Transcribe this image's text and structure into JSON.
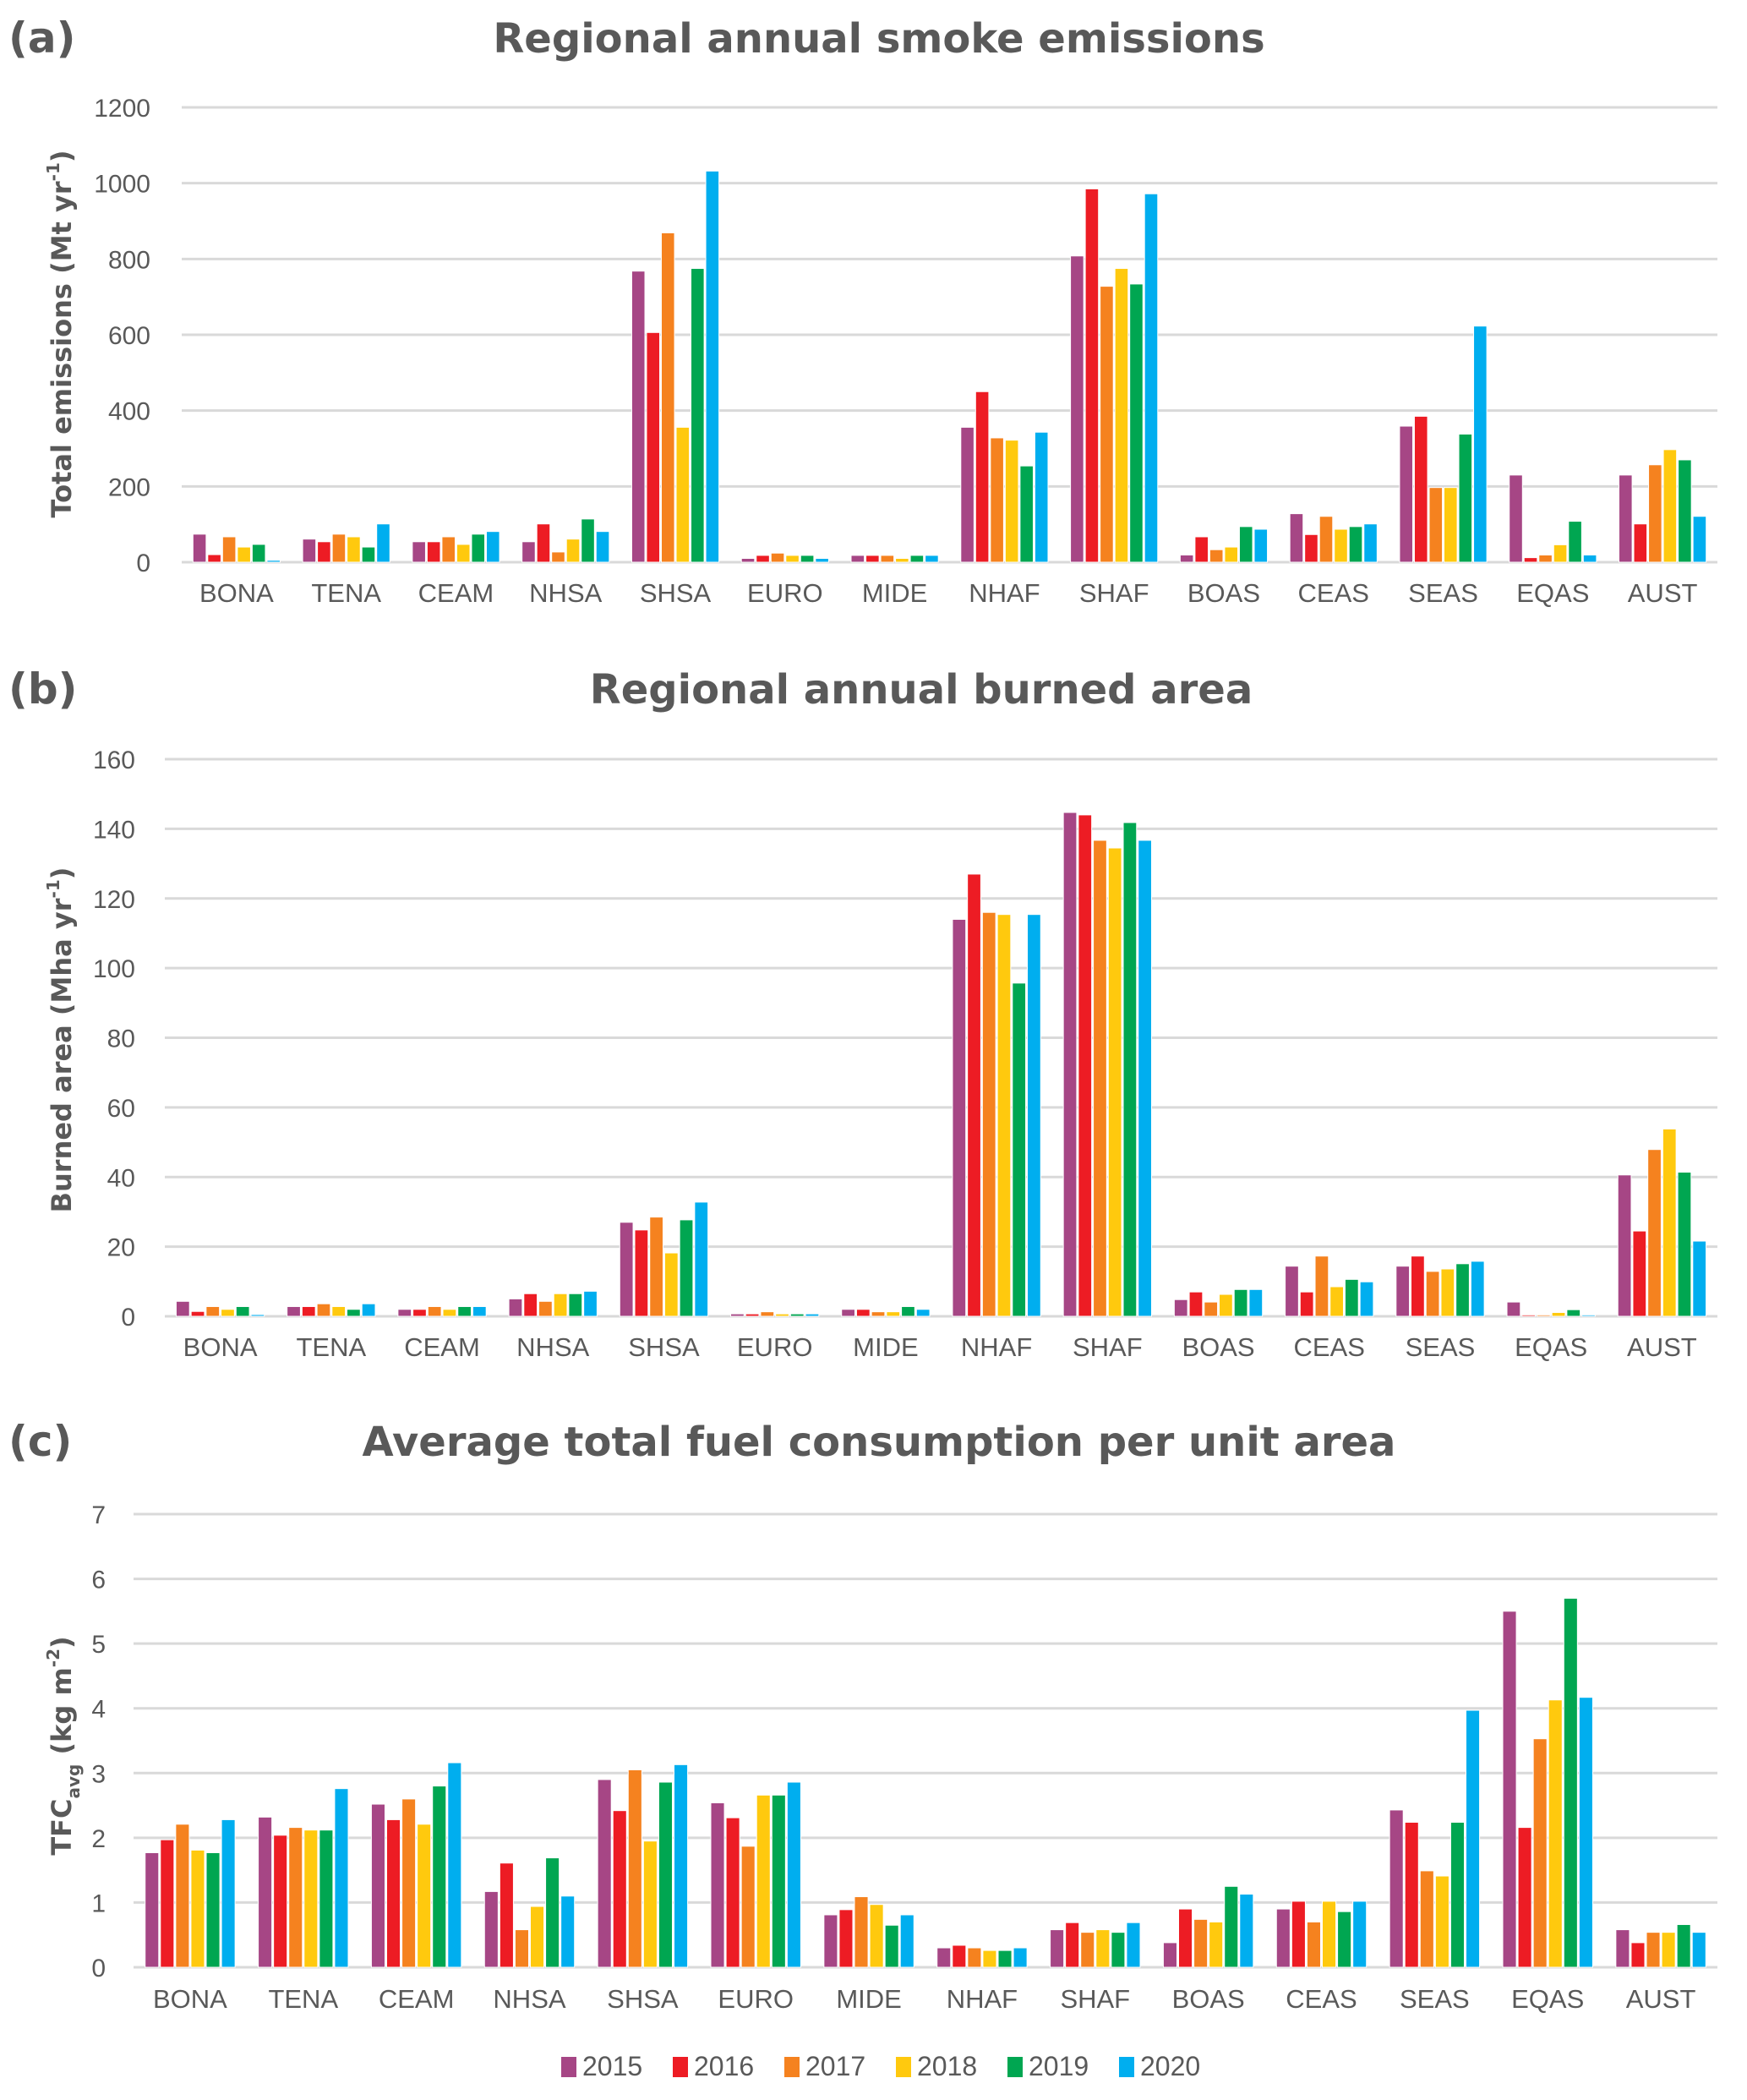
{
  "legend": {
    "placement": "bottom-center",
    "entries": [
      {
        "label": "2015",
        "color": "#A64685"
      },
      {
        "label": "2016",
        "color": "#ED1C24"
      },
      {
        "label": "2017",
        "color": "#F5821F"
      },
      {
        "label": "2018",
        "color": "#FFC90E"
      },
      {
        "label": "2019",
        "color": "#00A651"
      },
      {
        "label": "2020",
        "color": "#00AEEF"
      }
    ]
  },
  "chart_data": [
    {
      "panel": "(a)",
      "type": "bar",
      "title": "Regional annual smoke emissions",
      "xlabel": "",
      "ylabel": "Total emissions (Mt yr",
      "ylabel_sup": "-1",
      "ylabel_end": ")",
      "ylim": [
        0,
        1200
      ],
      "yticks": [
        "0",
        "200",
        "400",
        "600",
        "800",
        "1000",
        "1200"
      ],
      "ytick_values": [
        0,
        200,
        400,
        600,
        800,
        1000,
        1200
      ],
      "grid": true,
      "categories": [
        "BONA",
        "TENA",
        "CEAM",
        "NHSA",
        "SHSA",
        "EURO",
        "MIDE",
        "NHAF",
        "SHAF",
        "BOAS",
        "CEAS",
        "SEAS",
        "EQAS",
        "AUST"
      ],
      "series": [
        {
          "name": "2015",
          "values": [
            74,
            61,
            54,
            54,
            768,
            10,
            18,
            356,
            808,
            19,
            128,
            359,
            230,
            230
          ]
        },
        {
          "name": "2016",
          "values": [
            20,
            54,
            54,
            101,
            606,
            18,
            18,
            450,
            985,
            67,
            73,
            385,
            12,
            101
          ]
        },
        {
          "name": "2017",
          "values": [
            67,
            74,
            67,
            27,
            869,
            24,
            18,
            328,
            728,
            33,
            121,
            197,
            19,
            257
          ]
        },
        {
          "name": "2018",
          "values": [
            40,
            67,
            47,
            61,
            356,
            18,
            10,
            322,
            775,
            40,
            87,
            197,
            46,
            297
          ]
        },
        {
          "name": "2019",
          "values": [
            47,
            40,
            74,
            114,
            775,
            18,
            18,
            254,
            734,
            94,
            94,
            338,
            108,
            270
          ]
        },
        {
          "name": "2020",
          "values": [
            5,
            101,
            81,
            81,
            1032,
            10,
            18,
            343,
            972,
            87,
            101,
            623,
            19,
            121
          ]
        }
      ]
    },
    {
      "panel": "(b)",
      "type": "bar",
      "title": "Regional annual burned area",
      "xlabel": "",
      "ylabel": "Burned area (Mha yr",
      "ylabel_sup": "-1",
      "ylabel_end": ")",
      "ylim": [
        0,
        160
      ],
      "yticks": [
        "0",
        "20",
        "40",
        "60",
        "80",
        "100",
        "120",
        "140",
        "160"
      ],
      "ytick_values": [
        0,
        20,
        40,
        60,
        80,
        100,
        120,
        140,
        160
      ],
      "grid": true,
      "categories": [
        "BONA",
        "TENA",
        "CEAM",
        "NHSA",
        "SHSA",
        "EURO",
        "MIDE",
        "NHAF",
        "SHAF",
        "BOAS",
        "CEAS",
        "SEAS",
        "EQAS",
        "AUST"
      ],
      "series": [
        {
          "name": "2015",
          "values": [
            4.3,
            2.8,
            2.0,
            5.0,
            27.0,
            0.7,
            2.0,
            114.0,
            144.7,
            4.8,
            14.4,
            14.4,
            4.1,
            40.6
          ]
        },
        {
          "name": "2016",
          "values": [
            1.4,
            2.8,
            2.0,
            6.5,
            24.8,
            0.7,
            2.0,
            127.0,
            144.0,
            7.0,
            7.0,
            17.3,
            0.4,
            24.5
          ]
        },
        {
          "name": "2017",
          "values": [
            2.8,
            3.6,
            2.8,
            4.3,
            28.5,
            1.3,
            1.3,
            116.0,
            136.7,
            4.1,
            17.3,
            12.9,
            0.4,
            47.9
          ]
        },
        {
          "name": "2018",
          "values": [
            2.0,
            2.8,
            2.0,
            6.5,
            18.2,
            0.7,
            1.3,
            115.4,
            134.5,
            6.3,
            8.5,
            13.6,
            1.1,
            53.8
          ]
        },
        {
          "name": "2019",
          "values": [
            2.8,
            2.0,
            2.8,
            6.5,
            27.7,
            0.7,
            2.8,
            95.7,
            141.8,
            7.7,
            10.6,
            15.1,
            1.9,
            41.4
          ]
        },
        {
          "name": "2020",
          "values": [
            0.5,
            3.6,
            2.8,
            7.2,
            32.8,
            0.7,
            2.0,
            115.4,
            136.7,
            7.7,
            9.9,
            15.8,
            0.4,
            21.6
          ]
        }
      ]
    },
    {
      "panel": "(c)",
      "type": "bar",
      "title": "Average total fuel consumption per unit area",
      "xlabel": "",
      "ylabel": "TFC",
      "ylabel_sub": "avg",
      "ylabel_mid": " (kg m",
      "ylabel_sup": "-2",
      "ylabel_end": ")",
      "ylim": [
        0,
        7
      ],
      "yticks": [
        "0",
        "1",
        "2",
        "3",
        "4",
        "5",
        "6",
        "7"
      ],
      "ytick_values": [
        0,
        1,
        2,
        3,
        4,
        5,
        6,
        7
      ],
      "grid": true,
      "categories": [
        "BONA",
        "TENA",
        "CEAM",
        "NHSA",
        "SHSA",
        "EURO",
        "MIDE",
        "NHAF",
        "SHAF",
        "BOAS",
        "CEAS",
        "SEAS",
        "EQAS",
        "AUST"
      ],
      "series": [
        {
          "name": "2015",
          "values": [
            1.77,
            2.32,
            2.52,
            1.17,
            2.9,
            2.54,
            0.81,
            0.3,
            0.58,
            0.38,
            0.9,
            2.43,
            5.5,
            0.58
          ]
        },
        {
          "name": "2016",
          "values": [
            1.97,
            2.04,
            2.28,
            1.61,
            2.42,
            2.31,
            0.89,
            0.34,
            0.69,
            0.9,
            1.02,
            2.24,
            2.16,
            0.38
          ]
        },
        {
          "name": "2017",
          "values": [
            2.21,
            2.16,
            2.6,
            0.58,
            3.05,
            1.87,
            1.09,
            0.3,
            0.54,
            0.74,
            0.7,
            1.49,
            3.53,
            0.54
          ]
        },
        {
          "name": "2018",
          "values": [
            1.81,
            2.12,
            2.21,
            0.94,
            1.95,
            2.66,
            0.97,
            0.26,
            0.58,
            0.7,
            1.02,
            1.41,
            4.13,
            0.54
          ]
        },
        {
          "name": "2019",
          "values": [
            1.77,
            2.12,
            2.8,
            1.69,
            2.86,
            2.66,
            0.65,
            0.26,
            0.54,
            1.25,
            0.86,
            2.24,
            5.7,
            0.66
          ]
        },
        {
          "name": "2020",
          "values": [
            2.28,
            2.76,
            3.16,
            1.1,
            3.13,
            2.86,
            0.81,
            0.3,
            0.69,
            1.13,
            1.02,
            3.97,
            4.17,
            0.54
          ]
        }
      ]
    }
  ]
}
